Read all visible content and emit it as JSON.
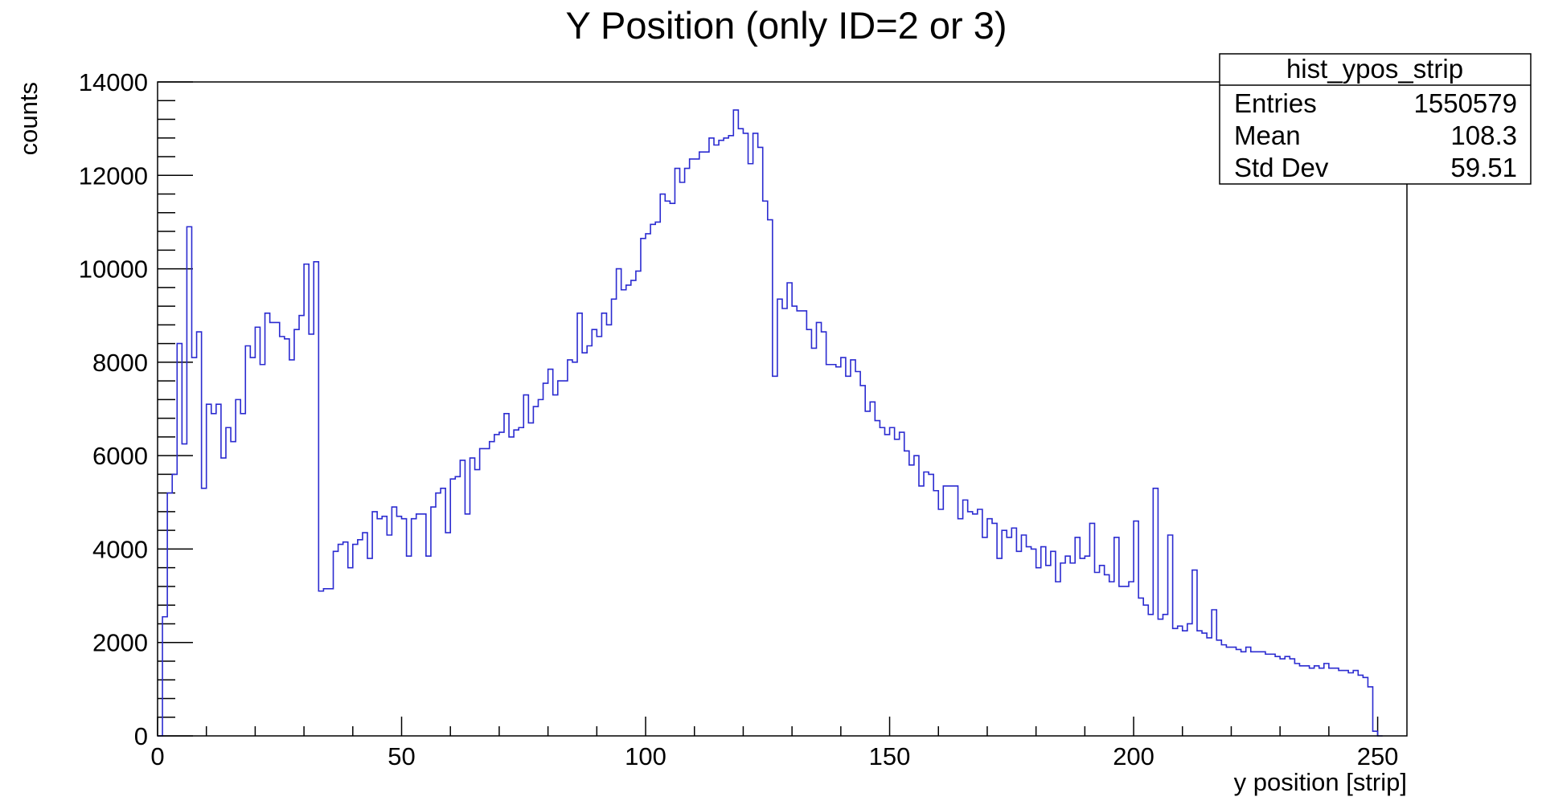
{
  "chart_data": {
    "type": "histogram",
    "title": "Y Position (only ID=2 or 3)",
    "xlabel": "y position [strip]",
    "ylabel": "counts",
    "xlim": [
      0,
      256
    ],
    "ylim": [
      0,
      14000
    ],
    "x_ticks": [
      0,
      50,
      100,
      150,
      200,
      250
    ],
    "y_ticks": [
      0,
      2000,
      4000,
      6000,
      8000,
      10000,
      12000,
      14000
    ],
    "grid": false,
    "line_color": "#2b2bd0",
    "bin_width": 1,
    "bin_start": 0,
    "values": [
      0,
      2550,
      5200,
      5600,
      8400,
      6250,
      10900,
      8100,
      8650,
      5300,
      7100,
      6900,
      7100,
      5950,
      6600,
      6300,
      7200,
      6900,
      8350,
      8100,
      8750,
      7950,
      9050,
      8850,
      8850,
      8550,
      8500,
      8050,
      8700,
      9000,
      10100,
      8600,
      10150,
      3100,
      3150,
      3150,
      3950,
      4100,
      4150,
      3600,
      4100,
      4200,
      4350,
      3800,
      4800,
      4650,
      4700,
      4300,
      4900,
      4700,
      4650,
      3850,
      4650,
      4750,
      4750,
      3850,
      4900,
      5200,
      5300,
      4350,
      5500,
      5550,
      5900,
      4750,
      5950,
      5700,
      6150,
      6150,
      6300,
      6450,
      6500,
      6900,
      6400,
      6550,
      6600,
      7300,
      6700,
      7050,
      7200,
      7550,
      7850,
      7300,
      7600,
      7600,
      8050,
      8000,
      9050,
      8200,
      8350,
      8700,
      8550,
      9050,
      8800,
      9350,
      10000,
      9550,
      9650,
      9750,
      9950,
      10650,
      10750,
      10950,
      11000,
      11600,
      11450,
      11400,
      12150,
      11850,
      12150,
      12350,
      12350,
      12500,
      12500,
      12800,
      12650,
      12750,
      12800,
      12850,
      13400,
      13000,
      12900,
      12250,
      12900,
      12600,
      11450,
      11050,
      7700,
      9350,
      9150,
      9700,
      9200,
      9100,
      9100,
      8700,
      8300,
      8850,
      8650,
      7950,
      7950,
      7900,
      8100,
      7700,
      8050,
      7800,
      7500,
      6950,
      7150,
      6750,
      6600,
      6450,
      6600,
      6350,
      6500,
      6100,
      5800,
      6000,
      5350,
      5650,
      5600,
      5250,
      4850,
      5350,
      5350,
      5350,
      4650,
      5050,
      4800,
      4750,
      4850,
      4250,
      4650,
      4550,
      3800,
      4400,
      4250,
      4450,
      3950,
      4300,
      4050,
      4000,
      3600,
      4050,
      3650,
      3950,
      3300,
      3700,
      3850,
      3700,
      4250,
      3800,
      3850,
      4550,
      3500,
      3650,
      3450,
      3300,
      4250,
      3200,
      3200,
      3300,
      4600,
      2950,
      2800,
      2600,
      5300,
      2500,
      2600,
      4300,
      2300,
      2350,
      2250,
      2400,
      3550,
      2250,
      2200,
      2100,
      2700,
      2050,
      1950,
      1900,
      1900,
      1850,
      1800,
      1900,
      1800,
      1800,
      1800,
      1750,
      1750,
      1700,
      1650,
      1700,
      1650,
      1550,
      1500,
      1500,
      1450,
      1500,
      1450,
      1550,
      1450,
      1450,
      1400,
      1400,
      1350,
      1400,
      1300,
      1250,
      1050,
      100,
      0
    ]
  },
  "stats_box": {
    "name": "hist_ypos_strip",
    "rows": [
      {
        "label": "Entries",
        "value": "1550579"
      },
      {
        "label": "Mean",
        "value": "108.3"
      },
      {
        "label": "Std Dev",
        "value": "59.51"
      }
    ]
  }
}
